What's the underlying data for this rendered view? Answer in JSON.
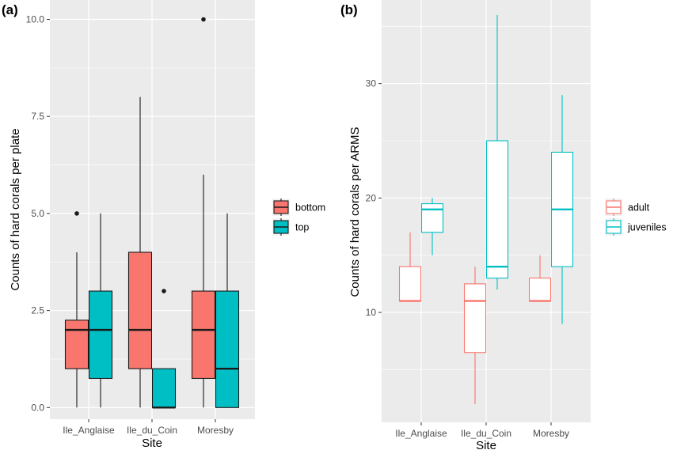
{
  "colors": {
    "panel_bg": "#ebebeb",
    "grid": "#ffffff",
    "salmon": "#f8766d",
    "teal": "#00bfc4",
    "line": "#1a1a1a"
  },
  "chart_data": [
    {
      "panel_label": "(a)",
      "type": "box",
      "title": "",
      "xlabel": "Site",
      "ylabel": "Counts of hard corals per plate",
      "categories": [
        "Ile_Anglaise",
        "Ile_du_Coin",
        "Moresby"
      ],
      "ylim": [
        -0.3,
        10.5
      ],
      "yticks": [
        0.0,
        2.5,
        5.0,
        7.5,
        10.0
      ],
      "ytick_labels": [
        "0.0",
        "2.5",
        "5.0",
        "7.5",
        "10.0"
      ],
      "grid": true,
      "fill_style": "filled",
      "legend_position": "right",
      "series": [
        {
          "name": "bottom",
          "color": "#f8766d",
          "boxes": [
            {
              "min": 0,
              "q1": 1.0,
              "median": 2.0,
              "q3": 2.25,
              "max": 4.0,
              "outliers": [
                5.0
              ]
            },
            {
              "min": 0,
              "q1": 1.0,
              "median": 2.0,
              "q3": 4.0,
              "max": 8.0,
              "outliers": []
            },
            {
              "min": 0,
              "q1": 0.75,
              "median": 2.0,
              "q3": 3.0,
              "max": 6.0,
              "outliers": [
                10.0
              ]
            }
          ]
        },
        {
          "name": "top",
          "color": "#00bfc4",
          "boxes": [
            {
              "min": 0,
              "q1": 0.75,
              "median": 2.0,
              "q3": 3.0,
              "max": 5.0,
              "outliers": []
            },
            {
              "min": 0,
              "q1": 0.0,
              "median": 0.0,
              "q3": 1.0,
              "max": 1.0,
              "outliers": [
                3.0
              ]
            },
            {
              "min": 0,
              "q1": 0.0,
              "median": 1.0,
              "q3": 3.0,
              "max": 5.0,
              "outliers": []
            }
          ]
        }
      ]
    },
    {
      "panel_label": "(b)",
      "type": "box",
      "title": "",
      "xlabel": "Site",
      "ylabel": "Counts of hard corals per ARMS",
      "categories": [
        "Ile_Anglaise",
        "Ile_du_Coin",
        "Moresby"
      ],
      "ylim": [
        0.4,
        37.3
      ],
      "yticks": [
        10,
        20,
        30
      ],
      "ytick_labels": [
        "10",
        "20",
        "30"
      ],
      "grid": true,
      "fill_style": "outline",
      "legend_position": "right",
      "series": [
        {
          "name": "adult",
          "color": "#f8766d",
          "boxes": [
            {
              "min": 11,
              "q1": 11,
              "median": 11,
              "q3": 14,
              "max": 17,
              "outliers": []
            },
            {
              "min": 2,
              "q1": 6.5,
              "median": 11,
              "q3": 12.5,
              "max": 14,
              "outliers": []
            },
            {
              "min": 11,
              "q1": 11,
              "median": 11,
              "q3": 13,
              "max": 15,
              "outliers": []
            }
          ]
        },
        {
          "name": "juveniles",
          "color": "#00bfc4",
          "boxes": [
            {
              "min": 15,
              "q1": 17,
              "median": 19,
              "q3": 19.5,
              "max": 20,
              "outliers": []
            },
            {
              "min": 12,
              "q1": 13,
              "median": 14,
              "q3": 25,
              "max": 36,
              "outliers": []
            },
            {
              "min": 9,
              "q1": 14,
              "median": 19,
              "q3": 24,
              "max": 29,
              "outliers": []
            }
          ]
        }
      ]
    }
  ]
}
